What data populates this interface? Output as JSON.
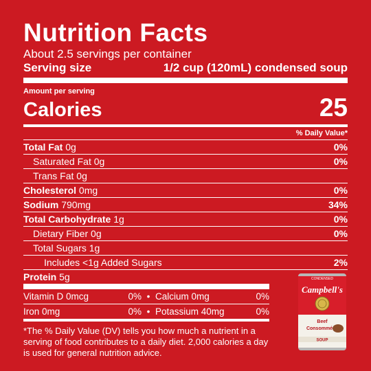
{
  "label": {
    "title": "Nutrition Facts",
    "servings_per_container": "About 2.5 servings per container",
    "serving_size_label": "Serving size",
    "serving_size_value": "1/2 cup (120mL) condensed soup",
    "amount_per_serving": "Amount per serving",
    "calories_label": "Calories",
    "calories_value": "25",
    "daily_value_header": "% Daily Value*",
    "nutrients": [
      {
        "name": "Total Fat",
        "amount": "0g",
        "dv": "0%"
      },
      {
        "name": "Saturated Fat",
        "amount": "0g",
        "dv": "0%"
      },
      {
        "name": "Trans Fat",
        "amount": "0g",
        "dv": ""
      },
      {
        "name": "Cholesterol",
        "amount": "0mg",
        "dv": "0%"
      },
      {
        "name": "Sodium",
        "amount": "790mg",
        "dv": "34%"
      },
      {
        "name": "Total Carbohydrate",
        "amount": "1g",
        "dv": "0%"
      },
      {
        "name": "Dietary Fiber",
        "amount": "0g",
        "dv": "0%"
      },
      {
        "name": "Total Sugars",
        "amount": "1g",
        "dv": ""
      },
      {
        "name": "Includes <1g Added Sugars",
        "amount": "",
        "dv": "2%"
      },
      {
        "name": "Protein",
        "amount": "5g",
        "dv": ""
      }
    ],
    "vitamins": [
      {
        "name": "Vitamin D 0mcg",
        "dv": "0%",
        "name2": "Calcium 0mg",
        "dv2": "0%"
      },
      {
        "name": "Iron 0mg",
        "dv": "0%",
        "name2": "Potassium 40mg",
        "dv2": "0%"
      }
    ],
    "footnote": "*The % Daily Value (DV) tells you how much a nutrient in a serving of food contributes to a daily diet. 2,000 calories a day is used for general nutrition advice."
  },
  "product": {
    "can_top_text": "CONDENSED",
    "brand": "Campbell's",
    "name_line1": "Beef",
    "name_line2": "Consommé",
    "bottom_text": "SOUP"
  }
}
